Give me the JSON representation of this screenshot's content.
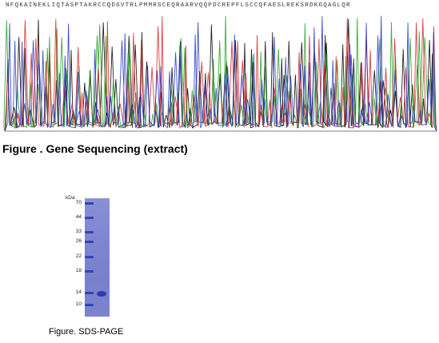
{
  "sequencing": {
    "sequence": "NFQKAINEKLIQTASPTAKRCCQDGVTRLPMMRSCEQRAARVQQPDCREPFLSCCQFAESLREKSRDKGQAGLQR",
    "caption": "Figure . Gene Sequencing (extract)",
    "trace_colors": [
      "#000000",
      "#1a9e1a",
      "#d42020",
      "#2030c0"
    ]
  },
  "gel": {
    "unit_label": "kDa",
    "markers": [
      "70",
      "44",
      "33",
      "26",
      "22",
      "18",
      "14",
      "10"
    ],
    "caption": "Figure. SDS-PAGE",
    "colors": {
      "background": "#7e86d2",
      "band": "#2e3bb0"
    }
  }
}
